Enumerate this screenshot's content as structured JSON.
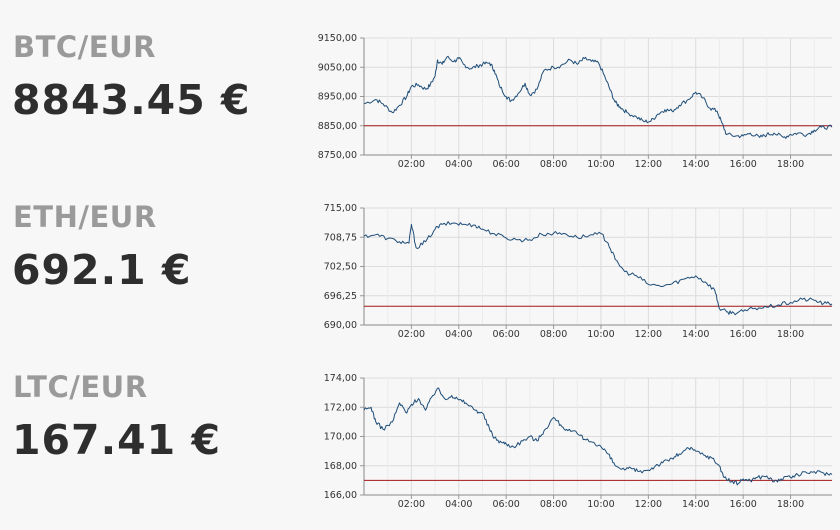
{
  "chart_data": [
    {
      "type": "line",
      "title": "BTC/EUR",
      "price_display": "8843.45 €",
      "x_tick_labels": [
        "02:00",
        "04:00",
        "06:00",
        "08:00",
        "10:00",
        "12:00",
        "14:00",
        "16:00",
        "18:00"
      ],
      "y_tick_labels": [
        "8750,00",
        "8850,00",
        "8950,00",
        "9050,00",
        "9150,00"
      ],
      "y_ticks": [
        8750,
        8850,
        8950,
        9050,
        9150
      ],
      "ylim": [
        8750,
        9150
      ],
      "xlim": [
        0.0,
        19.75
      ],
      "reference_value": 8850,
      "grid": true,
      "line_color": "#1f4e79",
      "reference_color": "#a31919",
      "series": [
        {
          "x": [
            0.0,
            0.5,
            0.8,
            1.2,
            1.5,
            1.8,
            2.0,
            2.3,
            2.6,
            2.8,
            3.0,
            3.1,
            3.3,
            3.5,
            3.8,
            4.0,
            4.2,
            4.5,
            4.8,
            5.0,
            5.3,
            5.5,
            5.7,
            6.0,
            6.2,
            6.5,
            6.8,
            7.0,
            7.3,
            7.6,
            8.0,
            8.3,
            8.7,
            9.0,
            9.3,
            9.6,
            9.9,
            10.2,
            10.4,
            10.6,
            10.8,
            11.1,
            11.5,
            11.8,
            12.1,
            12.4,
            12.7,
            13.0,
            13.3,
            13.7,
            14.0,
            14.3,
            14.6,
            14.9,
            15.1,
            15.3,
            15.7,
            16.0,
            16.3,
            16.7,
            17.0,
            17.3,
            17.7,
            18.0,
            18.3,
            18.7,
            19.0,
            19.3,
            19.75
          ],
          "y": [
            8925,
            8940,
            8925,
            8895,
            8920,
            8950,
            8985,
            8990,
            8975,
            8990,
            9020,
            9075,
            9060,
            9085,
            9070,
            9080,
            9060,
            9045,
            9055,
            9060,
            9065,
            9040,
            8990,
            8950,
            8935,
            8960,
            8995,
            8955,
            8975,
            9040,
            9050,
            9055,
            9075,
            9060,
            9080,
            9070,
            9065,
            9010,
            8970,
            8930,
            8915,
            8895,
            8880,
            8865,
            8865,
            8890,
            8905,
            8900,
            8920,
            8940,
            8965,
            8945,
            8910,
            8900,
            8860,
            8820,
            8815,
            8815,
            8825,
            8810,
            8820,
            8825,
            8810,
            8820,
            8825,
            8820,
            8835,
            8845,
            8845
          ]
        }
      ]
    },
    {
      "type": "line",
      "title": "ETH/EUR",
      "price_display": "692.1 €",
      "x_tick_labels": [
        "02:00",
        "04:00",
        "06:00",
        "08:00",
        "10:00",
        "12:00",
        "14:00",
        "16:00",
        "18:00"
      ],
      "y_tick_labels": [
        "690,00",
        "696,25",
        "702,50",
        "708,75",
        "715,00"
      ],
      "y_ticks": [
        690,
        696.25,
        702.5,
        708.75,
        715
      ],
      "ylim": [
        690,
        715
      ],
      "xlim": [
        0.0,
        19.75
      ],
      "reference_value": 694,
      "grid": true,
      "line_color": "#1f4e79",
      "reference_color": "#a31919",
      "series": [
        {
          "x": [
            0.0,
            0.5,
            1.0,
            1.5,
            1.9,
            2.0,
            2.2,
            2.6,
            3.0,
            3.3,
            3.8,
            4.2,
            4.7,
            5.0,
            5.5,
            6.0,
            6.5,
            7.0,
            7.5,
            8.0,
            8.5,
            9.0,
            9.5,
            10.0,
            10.3,
            10.6,
            11.0,
            11.5,
            12.0,
            12.5,
            13.0,
            13.5,
            14.0,
            14.4,
            14.8,
            15.0,
            15.3,
            15.6,
            16.0,
            16.5,
            17.0,
            17.5,
            18.0,
            18.5,
            19.0,
            19.4,
            19.75
          ],
          "y": [
            709,
            709.3,
            708.5,
            707.8,
            707.5,
            711.5,
            706.5,
            707.8,
            710.5,
            711.5,
            711.8,
            711.5,
            711.3,
            710.5,
            709.5,
            708.6,
            708.2,
            708.2,
            709.4,
            709.6,
            709.5,
            708.7,
            709.1,
            709.5,
            707.5,
            704,
            701.4,
            700.5,
            698.7,
            698.3,
            698.8,
            699.8,
            700.5,
            699.2,
            697.5,
            693.5,
            692.8,
            692.6,
            692.9,
            693.6,
            693.8,
            694.3,
            694.8,
            695.5,
            695.3,
            694.6,
            694.5
          ]
        }
      ]
    },
    {
      "type": "line",
      "title": "LTC/EUR",
      "price_display": "167.41 €",
      "x_tick_labels": [
        "02:00",
        "04:00",
        "06:00",
        "08:00",
        "10:00",
        "12:00",
        "14:00",
        "16:00",
        "18:00"
      ],
      "y_tick_labels": [
        "166,00",
        "168,00",
        "170,00",
        "172,00",
        "174,00"
      ],
      "y_ticks": [
        166,
        168,
        170,
        172,
        174
      ],
      "ylim": [
        166,
        174
      ],
      "xlim": [
        0.0,
        19.75
      ],
      "reference_value": 167,
      "grid": true,
      "line_color": "#1f4e79",
      "reference_color": "#a31919",
      "series": [
        {
          "x": [
            0.0,
            0.3,
            0.5,
            0.8,
            1.2,
            1.5,
            1.8,
            2.0,
            2.3,
            2.6,
            2.9,
            3.1,
            3.4,
            3.7,
            4.0,
            4.3,
            4.7,
            5.0,
            5.3,
            5.5,
            5.8,
            6.0,
            6.3,
            6.7,
            7.0,
            7.3,
            7.6,
            8.0,
            8.3,
            8.6,
            9.0,
            9.3,
            9.7,
            10.0,
            10.3,
            10.6,
            11.0,
            11.3,
            11.6,
            12.0,
            12.3,
            12.6,
            13.0,
            13.3,
            13.7,
            14.0,
            14.4,
            14.7,
            15.0,
            15.2,
            15.5,
            15.8,
            16.0,
            16.3,
            16.6,
            17.0,
            17.3,
            17.6,
            18.0,
            18.3,
            18.7,
            19.0,
            19.4,
            19.75
          ],
          "y": [
            171.8,
            172.0,
            171.0,
            170.5,
            171.0,
            172.3,
            171.6,
            172.2,
            172.6,
            171.8,
            172.8,
            173.3,
            172.6,
            172.8,
            172.5,
            172.3,
            171.8,
            171.6,
            170.5,
            169.9,
            169.6,
            169.5,
            169.3,
            169.7,
            170.0,
            169.7,
            170.4,
            171.3,
            170.8,
            170.4,
            170.2,
            169.8,
            169.6,
            169.3,
            168.8,
            168.0,
            167.7,
            167.8,
            167.6,
            167.7,
            168.0,
            168.2,
            168.5,
            168.8,
            169.2,
            169.0,
            168.7,
            168.5,
            168.0,
            167.2,
            166.9,
            166.8,
            167.1,
            167.0,
            167.2,
            167.3,
            166.9,
            167.1,
            167.2,
            167.4,
            167.5,
            167.6,
            167.5,
            167.4
          ]
        }
      ]
    }
  ]
}
